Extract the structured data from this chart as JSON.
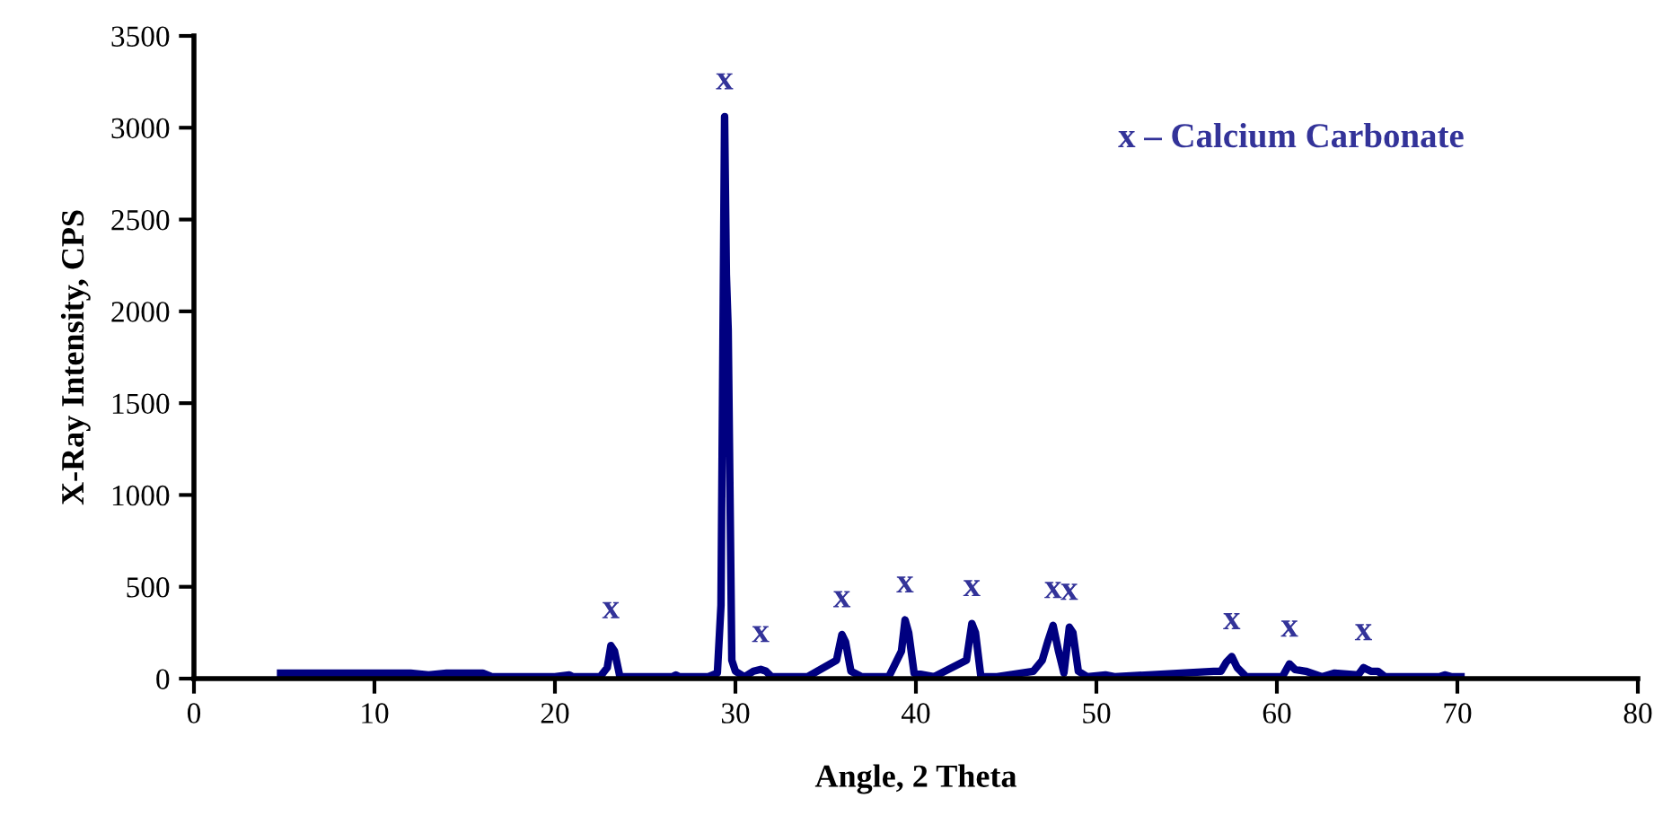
{
  "chart_data": {
    "type": "line",
    "xlabel": "Angle, 2 Theta",
    "ylabel": "X-Ray Intensity, CPS",
    "xlim": [
      0,
      80
    ],
    "ylim": [
      0,
      3500
    ],
    "xticks": [
      0,
      10,
      20,
      30,
      40,
      50,
      60,
      70,
      80
    ],
    "yticks": [
      0,
      500,
      1000,
      1500,
      2000,
      2500,
      3000,
      3500
    ],
    "grid": false,
    "legend": false,
    "marker": "none",
    "line_style": "solid",
    "series": [
      {
        "color": "#000080",
        "x": [
          4.8,
          6,
          8,
          10,
          12,
          13,
          14,
          16,
          16.5,
          18,
          20,
          20.8,
          21,
          21.2,
          22.5,
          22.9,
          23.1,
          23.3,
          23.6,
          24.5,
          26.5,
          26.7,
          26.9,
          28.5,
          29.0,
          29.2,
          29.4,
          29.5,
          29.6,
          29.8,
          30.0,
          30.5,
          31.0,
          31.4,
          31.7,
          32.0,
          34,
          35.6,
          35.9,
          36.1,
          36.4,
          37,
          38.5,
          39.2,
          39.4,
          39.6,
          39.9,
          41,
          42.8,
          43.1,
          43.3,
          43.6,
          44.5,
          46.5,
          47.0,
          47.3,
          47.6,
          47.9,
          48.2,
          48.5,
          48.7,
          49.0,
          49.5,
          50.5,
          51,
          56.5,
          56.9,
          57.2,
          57.5,
          57.8,
          58.3,
          60.3,
          60.7,
          61.0,
          61.6,
          62.5,
          63.2,
          64.5,
          64.8,
          65.2,
          65.6,
          66.0,
          67,
          69.0,
          69.3,
          69.7,
          70.2
        ],
        "values": [
          30,
          30,
          30,
          30,
          30,
          20,
          30,
          30,
          10,
          10,
          10,
          20,
          10,
          10,
          10,
          60,
          180,
          150,
          10,
          10,
          10,
          20,
          10,
          10,
          30,
          400,
          3060,
          2200,
          1900,
          100,
          40,
          10,
          40,
          50,
          40,
          10,
          10,
          100,
          240,
          200,
          40,
          10,
          10,
          150,
          320,
          250,
          30,
          10,
          100,
          300,
          250,
          10,
          10,
          40,
          100,
          200,
          290,
          150,
          30,
          280,
          250,
          40,
          10,
          20,
          10,
          40,
          40,
          90,
          120,
          60,
          10,
          10,
          80,
          50,
          40,
          10,
          30,
          20,
          60,
          40,
          40,
          10,
          10,
          10,
          20,
          10,
          10
        ]
      }
    ],
    "annotations": [
      {
        "text": "x",
        "x": 23.1,
        "y": 180
      },
      {
        "text": "x",
        "x": 29.4,
        "y": 3060
      },
      {
        "text": "x",
        "x": 31.4,
        "y": 50
      },
      {
        "text": "x",
        "x": 35.9,
        "y": 240
      },
      {
        "text": "x",
        "x": 39.4,
        "y": 320
      },
      {
        "text": "x",
        "x": 43.1,
        "y": 300
      },
      {
        "text": "x",
        "x": 47.6,
        "y": 290
      },
      {
        "text": "x",
        "x": 48.5,
        "y": 280
      },
      {
        "text": "x",
        "x": 57.5,
        "y": 120
      },
      {
        "text": "x",
        "x": 60.7,
        "y": 80
      },
      {
        "text": "x",
        "x": 64.8,
        "y": 60
      },
      "x – Calcium Carbonate"
    ]
  }
}
